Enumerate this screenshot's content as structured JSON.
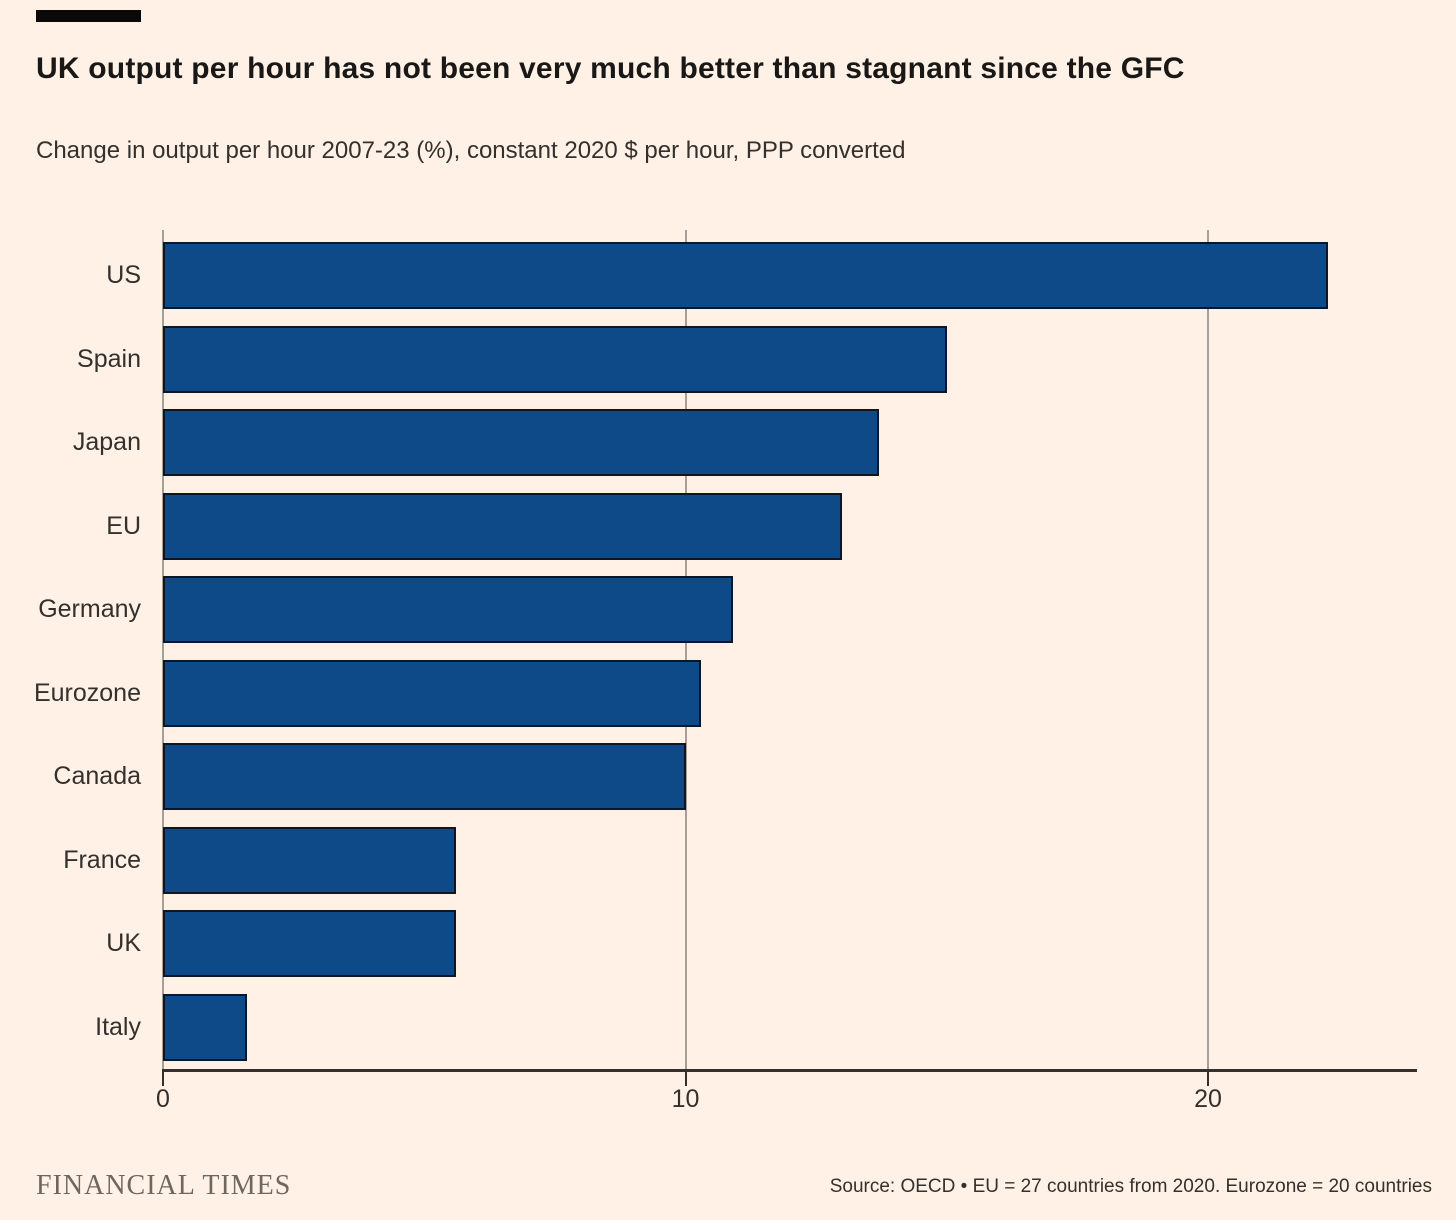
{
  "header": {
    "title": "UK output per hour has not been very much better than stagnant since the GFC",
    "subtitle": "Change in output per hour 2007-23 (%), constant 2020 $ per hour, PPP converted"
  },
  "chart_data": {
    "type": "bar",
    "orientation": "horizontal",
    "title": "UK output per hour has not been very much better than stagnant since the GFC",
    "subtitle": "Change in output per hour 2007-23 (%), constant 2020 $ per hour, PPP converted",
    "categories": [
      "US",
      "Spain",
      "Japan",
      "EU",
      "Germany",
      "Eurozone",
      "Canada",
      "France",
      "UK",
      "Italy"
    ],
    "values": [
      22.3,
      15.0,
      13.7,
      13.0,
      10.9,
      10.3,
      10.0,
      5.6,
      5.6,
      1.6
    ],
    "xlabel": "",
    "ylabel": "",
    "xlim": [
      0,
      24
    ],
    "xticks": [
      0,
      10,
      20
    ],
    "grid": "vertical-gridlines-at-xticks",
    "legend": "none",
    "bar_color": "#0D4A87",
    "bar_border_color": "#0B1626",
    "gridline_color": "#A69F97",
    "axis_color": "#33302E",
    "background_color": "#FFF1E5"
  },
  "footer": {
    "logo": "FINANCIAL TIMES",
    "source": "Source: OECD • EU = 27 countries from 2020. Eurozone = 20 countries"
  }
}
